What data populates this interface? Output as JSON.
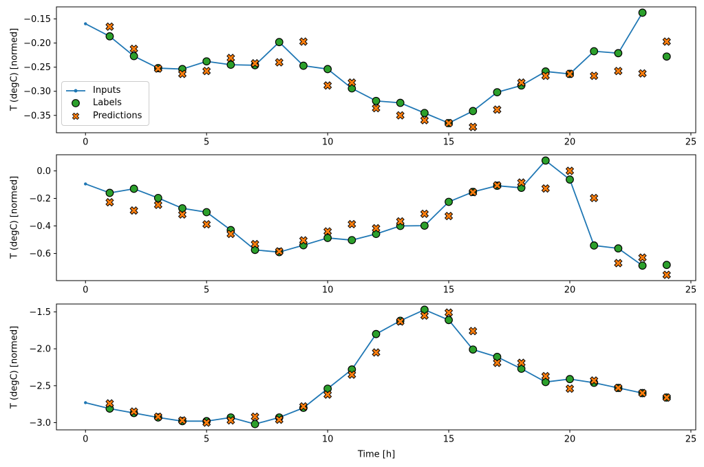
{
  "figure": {
    "ylabel": "T (degC) [normed]",
    "xlabel": "Time [h]",
    "legend": {
      "items": [
        {
          "label": "Inputs",
          "marker": "line-with-dot",
          "color": "#1f77b4"
        },
        {
          "label": "Labels",
          "marker": "circle",
          "color": "#2ca02c"
        },
        {
          "label": "Predictions",
          "marker": "X",
          "color": "#ff7f0e"
        }
      ]
    }
  },
  "colors": {
    "inputs": "#1f77b4",
    "labels": "#2ca02c",
    "predictions": "#ff7f0e",
    "marker_edge": "#000000",
    "spine": "#000000",
    "legend_border": "#cccccc"
  },
  "chart_data": [
    {
      "type": "line",
      "panel": "top",
      "ylabel": "T (degC) [normed]",
      "xlim": [
        -1.2,
        25.2
      ],
      "ylim": [
        -0.386,
        -0.125
      ],
      "grid": false,
      "xticks": [
        0,
        5,
        10,
        15,
        20,
        25
      ],
      "yticks": [
        -0.15,
        -0.2,
        -0.25,
        -0.3,
        -0.35
      ],
      "ytick_labels": [
        "−0.15",
        "−0.20",
        "−0.25",
        "−0.30",
        "−0.35"
      ],
      "series": [
        {
          "name": "Inputs",
          "x": [
            0,
            1,
            2,
            3,
            4,
            5,
            6,
            7,
            8,
            9,
            10,
            11,
            12,
            13,
            14,
            15,
            16,
            17,
            18,
            19,
            20,
            21,
            22,
            23
          ],
          "y": [
            -0.16,
            -0.186,
            -0.227,
            -0.252,
            -0.254,
            -0.238,
            -0.245,
            -0.246,
            -0.198,
            -0.247,
            -0.254,
            -0.294,
            -0.32,
            -0.324,
            -0.345,
            -0.366,
            -0.341,
            -0.302,
            -0.288,
            -0.259,
            -0.264,
            -0.217,
            -0.221,
            -0.137
          ]
        },
        {
          "name": "Labels",
          "x": [
            1,
            2,
            3,
            4,
            5,
            6,
            7,
            8,
            9,
            10,
            11,
            12,
            13,
            14,
            15,
            16,
            17,
            18,
            19,
            20,
            21,
            22,
            23,
            24
          ],
          "y": [
            -0.186,
            -0.227,
            -0.252,
            -0.254,
            -0.238,
            -0.245,
            -0.246,
            -0.198,
            -0.247,
            -0.254,
            -0.294,
            -0.32,
            -0.324,
            -0.345,
            -0.366,
            -0.341,
            -0.302,
            -0.288,
            -0.259,
            -0.264,
            -0.217,
            -0.221,
            -0.137,
            -0.228
          ]
        },
        {
          "name": "Predictions",
          "x": [
            1,
            2,
            3,
            4,
            5,
            6,
            7,
            8,
            9,
            10,
            11,
            12,
            13,
            14,
            15,
            16,
            17,
            18,
            19,
            20,
            21,
            22,
            23,
            24
          ],
          "y": [
            -0.166,
            -0.212,
            -0.253,
            -0.264,
            -0.258,
            -0.231,
            -0.242,
            -0.24,
            -0.197,
            -0.288,
            -0.282,
            -0.335,
            -0.35,
            -0.36,
            -0.366,
            -0.374,
            -0.338,
            -0.282,
            -0.268,
            -0.264,
            -0.268,
            -0.258,
            -0.263,
            -0.197
          ]
        }
      ]
    },
    {
      "type": "line",
      "panel": "middle",
      "ylabel": "T (degC) [normed]",
      "xlim": [
        -1.2,
        25.2
      ],
      "ylim": [
        -0.797,
        0.117
      ],
      "grid": false,
      "xticks": [
        0,
        5,
        10,
        15,
        20,
        25
      ],
      "yticks": [
        0.0,
        -0.2,
        -0.4,
        -0.6
      ],
      "ytick_labels": [
        "0.0",
        "−0.2",
        "−0.4",
        "−0.6"
      ],
      "series": [
        {
          "name": "Inputs",
          "x": [
            0,
            1,
            2,
            3,
            4,
            5,
            6,
            7,
            8,
            9,
            10,
            11,
            12,
            13,
            14,
            15,
            16,
            17,
            18,
            19,
            20,
            21,
            22,
            23
          ],
          "y": [
            -0.095,
            -0.16,
            -0.13,
            -0.197,
            -0.272,
            -0.3,
            -0.43,
            -0.574,
            -0.59,
            -0.54,
            -0.487,
            -0.503,
            -0.458,
            -0.4,
            -0.398,
            -0.225,
            -0.153,
            -0.108,
            -0.123,
            0.075,
            -0.063,
            -0.542,
            -0.563,
            -0.688
          ]
        },
        {
          "name": "Labels",
          "x": [
            1,
            2,
            3,
            4,
            5,
            6,
            7,
            8,
            9,
            10,
            11,
            12,
            13,
            14,
            15,
            16,
            17,
            18,
            19,
            20,
            21,
            22,
            23,
            24
          ],
          "y": [
            -0.16,
            -0.13,
            -0.197,
            -0.272,
            -0.3,
            -0.43,
            -0.574,
            -0.59,
            -0.54,
            -0.487,
            -0.503,
            -0.458,
            -0.4,
            -0.398,
            -0.225,
            -0.153,
            -0.108,
            -0.123,
            0.075,
            -0.063,
            -0.542,
            -0.563,
            -0.688,
            -0.683
          ]
        },
        {
          "name": "Predictions",
          "x": [
            1,
            2,
            3,
            4,
            5,
            6,
            7,
            8,
            9,
            10,
            11,
            12,
            13,
            14,
            15,
            16,
            17,
            18,
            19,
            20,
            21,
            22,
            23,
            24
          ],
          "y": [
            -0.228,
            -0.288,
            -0.247,
            -0.317,
            -0.388,
            -0.458,
            -0.532,
            -0.585,
            -0.505,
            -0.44,
            -0.387,
            -0.417,
            -0.367,
            -0.312,
            -0.328,
            -0.155,
            -0.105,
            -0.085,
            -0.128,
            0.0,
            -0.197,
            -0.67,
            -0.63,
            -0.755
          ]
        }
      ]
    },
    {
      "type": "line",
      "panel": "bottom",
      "ylabel": "T (degC) [normed]",
      "xlabel": "Time [h]",
      "xlim": [
        -1.2,
        25.2
      ],
      "ylim": [
        -3.098,
        -1.393
      ],
      "grid": false,
      "xticks": [
        0,
        5,
        10,
        15,
        20,
        25
      ],
      "yticks": [
        -1.5,
        -2.0,
        -2.5,
        -3.0
      ],
      "ytick_labels": [
        "−1.5",
        "−2.0",
        "−2.5",
        "−3.0"
      ],
      "series": [
        {
          "name": "Inputs",
          "x": [
            0,
            1,
            2,
            3,
            4,
            5,
            6,
            7,
            8,
            9,
            10,
            11,
            12,
            13,
            14,
            15,
            16,
            17,
            18,
            19,
            20,
            21,
            22,
            23
          ],
          "y": [
            -2.73,
            -2.81,
            -2.87,
            -2.93,
            -2.98,
            -2.98,
            -2.93,
            -3.02,
            -2.93,
            -2.8,
            -2.54,
            -2.28,
            -1.8,
            -1.62,
            -1.47,
            -1.61,
            -2.01,
            -2.11,
            -2.27,
            -2.45,
            -2.41,
            -2.46,
            -2.53,
            -2.6
          ]
        },
        {
          "name": "Labels",
          "x": [
            1,
            2,
            3,
            4,
            5,
            6,
            7,
            8,
            9,
            10,
            11,
            12,
            13,
            14,
            15,
            16,
            17,
            18,
            19,
            20,
            21,
            22,
            23,
            24
          ],
          "y": [
            -2.81,
            -2.87,
            -2.93,
            -2.98,
            -2.98,
            -2.93,
            -3.02,
            -2.93,
            -2.8,
            -2.54,
            -2.28,
            -1.8,
            -1.62,
            -1.47,
            -1.61,
            -2.01,
            -2.11,
            -2.27,
            -2.45,
            -2.41,
            -2.46,
            -2.53,
            -2.6,
            -2.66
          ]
        },
        {
          "name": "Predictions",
          "x": [
            1,
            2,
            3,
            4,
            5,
            6,
            7,
            8,
            9,
            10,
            11,
            12,
            13,
            14,
            15,
            16,
            17,
            18,
            19,
            20,
            21,
            22,
            23,
            24
          ],
          "y": [
            -2.74,
            -2.85,
            -2.92,
            -2.97,
            -3.0,
            -2.97,
            -2.92,
            -2.96,
            -2.78,
            -2.62,
            -2.35,
            -2.05,
            -1.63,
            -1.55,
            -1.51,
            -1.76,
            -2.19,
            -2.19,
            -2.37,
            -2.54,
            -2.43,
            -2.53,
            -2.6,
            -2.66
          ]
        }
      ]
    }
  ]
}
